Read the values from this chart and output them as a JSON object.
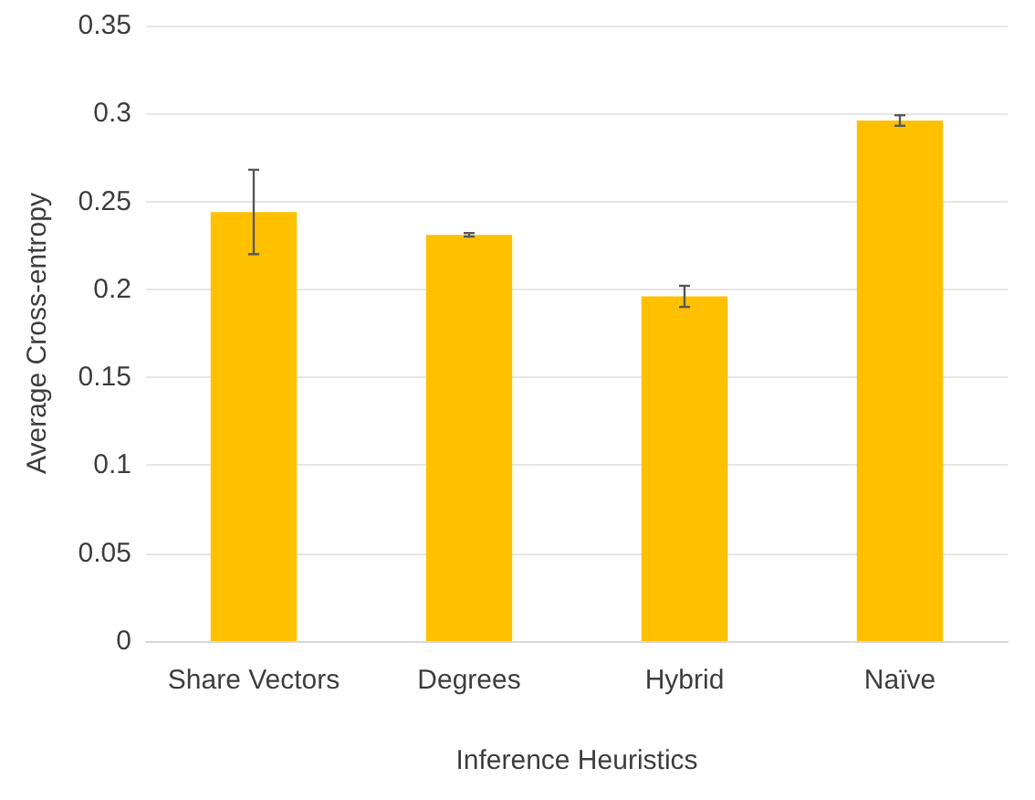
{
  "chart_data": {
    "type": "bar",
    "xlabel": "Inference Heuristics",
    "ylabel": "Average Cross-entropy",
    "categories": [
      "Share Vectors",
      "Degrees",
      "Hybrid",
      "Naïve"
    ],
    "values": [
      0.244,
      0.231,
      0.196,
      0.296
    ],
    "errors": [
      0.024,
      0.001,
      0.006,
      0.003
    ],
    "color": "#ffc000",
    "ylim": [
      0,
      0.35
    ],
    "yticks": [
      0,
      0.05,
      0.1,
      0.15,
      0.2,
      0.25,
      0.3,
      0.35
    ],
    "grid": "y"
  }
}
